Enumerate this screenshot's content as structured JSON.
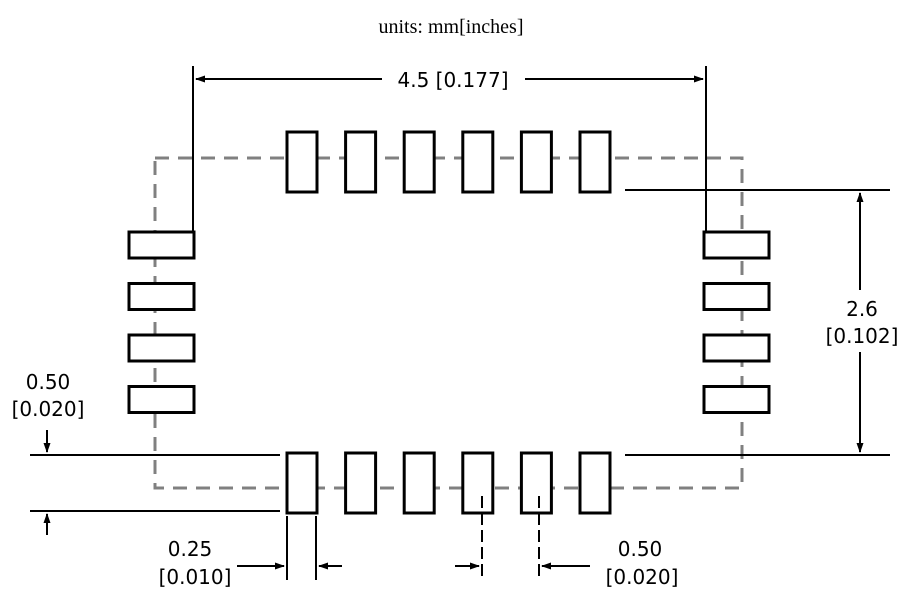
{
  "diagram": {
    "units_caption": "units: mm[inches]",
    "dims": {
      "overall_width": "4.5 [0.177]",
      "pad_row_height_mm": "2.6",
      "pad_row_height_in": "[0.102]",
      "pad_length_mm": "0.50",
      "pad_length_in": "[0.020]",
      "pad_width_mm": "0.25",
      "pad_width_in": "[0.010]",
      "pitch_mm": "0.50",
      "pitch_in": "[0.020]"
    },
    "colors": {
      "line": "#000000",
      "outline_dash": "#808080",
      "background": "#ffffff"
    },
    "pads": {
      "top_count": 6,
      "bottom_count": 6,
      "left_count": 4,
      "right_count": 4
    }
  }
}
